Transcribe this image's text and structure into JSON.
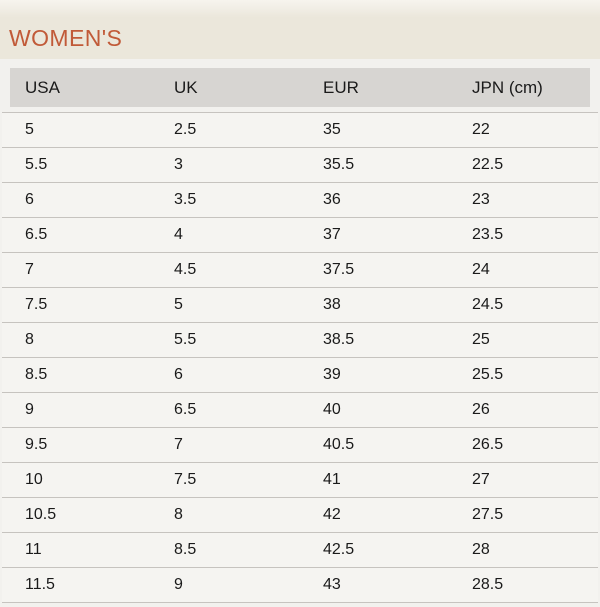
{
  "title": "WOMEN'S",
  "colors": {
    "page_bg": "#f2f1ee",
    "band_bg": "#ebe7db",
    "title": "#c15a38",
    "header_bg": "#d7d5d2",
    "tbody_bg": "#f5f4f1",
    "divider": "#c6c3bf",
    "text": "#1a1a1a"
  },
  "table": {
    "headers": [
      "USA",
      "UK",
      "EUR",
      "JPN (cm)"
    ],
    "rows": [
      [
        "5",
        "2.5",
        "35",
        "22"
      ],
      [
        "5.5",
        "3",
        "35.5",
        "22.5"
      ],
      [
        "6",
        "3.5",
        "36",
        "23"
      ],
      [
        "6.5",
        "4",
        "37",
        "23.5"
      ],
      [
        "7",
        "4.5",
        "37.5",
        "24"
      ],
      [
        "7.5",
        "5",
        "38",
        "24.5"
      ],
      [
        "8",
        "5.5",
        "38.5",
        "25"
      ],
      [
        "8.5",
        "6",
        "39",
        "25.5"
      ],
      [
        "9",
        "6.5",
        "40",
        "26"
      ],
      [
        "9.5",
        "7",
        "40.5",
        "26.5"
      ],
      [
        "10",
        "7.5",
        "41",
        "27"
      ],
      [
        "10.5",
        "8",
        "42",
        "27.5"
      ],
      [
        "11",
        "8.5",
        "42.5",
        "28"
      ],
      [
        "11.5",
        "9",
        "43",
        "28.5"
      ]
    ]
  }
}
